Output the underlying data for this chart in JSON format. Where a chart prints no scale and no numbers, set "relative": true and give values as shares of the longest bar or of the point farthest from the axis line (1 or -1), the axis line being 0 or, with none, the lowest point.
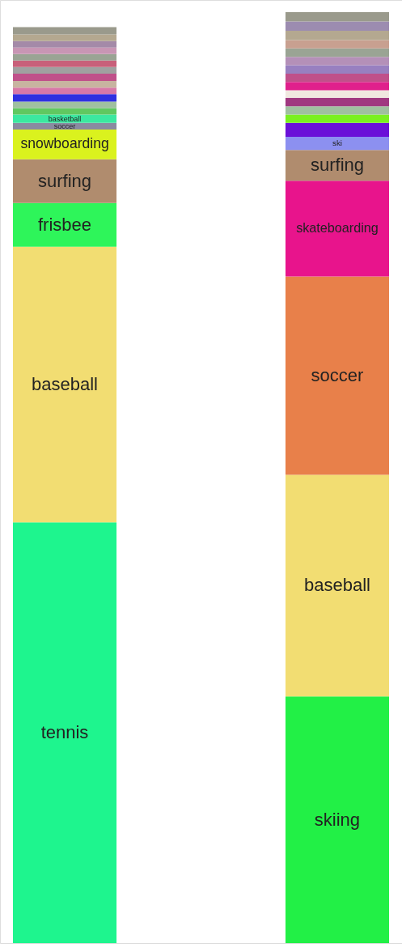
{
  "chart_data": {
    "type": "bar",
    "stacked": true,
    "relative": true,
    "categories": [
      null,
      null
    ],
    "series": [
      {
        "name": "tennis",
        "color": "#1ef58e",
        "values": [
          0.452,
          null
        ]
      },
      {
        "name": "skiing",
        "color": "#22f046",
        "values": [
          null,
          0.265
        ]
      },
      {
        "name": "baseball",
        "color": "#f2dd72",
        "values": [
          0.296,
          0.238
        ]
      },
      {
        "name": "frisbee",
        "color": "#2ef55a",
        "values": [
          0.047,
          null
        ]
      },
      {
        "name": "soccer",
        "color": "#e8804a",
        "values": [
          null,
          0.213
        ]
      },
      {
        "name": "surfing",
        "color": "#b08c6e",
        "values": [
          0.047,
          null
        ]
      },
      {
        "name": "skateboarding",
        "color": "#e8148c",
        "values": [
          null,
          0.103
        ]
      },
      {
        "name": "snowboarding",
        "color": "#daf21e",
        "values": [
          0.032,
          null
        ]
      },
      {
        "name": "surfing",
        "color": "#b08c6e",
        "values": [
          null,
          0.033
        ]
      },
      {
        "name": "soccer",
        "color": "#8a8aa0",
        "values": [
          0.007,
          null
        ]
      },
      {
        "name": "ski",
        "color": "#8c90f0",
        "values": [
          null,
          0.014
        ]
      },
      {
        "name": "basketball",
        "color": "#3ce8a0",
        "values": [
          0.009,
          null
        ]
      },
      {
        "color": "#6a10d8",
        "values": [
          null,
          0.015
        ]
      },
      {
        "color": "#60c860",
        "values": [
          0.007,
          null
        ]
      },
      {
        "color": "#7af020",
        "values": [
          null,
          0.009
        ]
      },
      {
        "color": "#a0c0a0",
        "values": [
          0.007,
          0.009
        ]
      },
      {
        "color": "#3030e0",
        "values": [
          0.008,
          null
        ]
      },
      {
        "color": "#a03880",
        "values": [
          null,
          0.009
        ]
      },
      {
        "color": "#d878a8",
        "values": [
          0.007,
          null
        ]
      },
      {
        "color": "#f0e8e0",
        "values": [
          null,
          0.008
        ]
      },
      {
        "color": "#c8b4a0",
        "values": [
          0.007,
          null
        ]
      },
      {
        "color": "#e0208c",
        "values": [
          null,
          0.009
        ]
      },
      {
        "color": "#c0508a",
        "values": [
          0.008,
          0.009
        ]
      },
      {
        "color": "#a0a0a0",
        "values": [
          0.007,
          null
        ]
      },
      {
        "color": "#9880c0",
        "values": [
          null,
          0.009
        ]
      },
      {
        "color": "#c8607a",
        "values": [
          0.007,
          null
        ]
      },
      {
        "color": "#b490b8",
        "values": [
          null,
          0.009
        ]
      },
      {
        "color": "#9aa494",
        "values": [
          0.007,
          0.009
        ]
      },
      {
        "color": "#c896b4",
        "values": [
          0.007,
          null
        ]
      },
      {
        "color": "#c8a090",
        "values": [
          null,
          0.009
        ]
      },
      {
        "color": "#a48aa8",
        "values": [
          0.007,
          null
        ]
      },
      {
        "color": "#b4a890",
        "values": [
          0.007,
          0.01
        ]
      },
      {
        "color": "#9c8cb0",
        "values": [
          null,
          0.01
        ]
      },
      {
        "color": "#9a9a8c",
        "values": [
          0.008,
          0.01
        ]
      }
    ]
  }
}
